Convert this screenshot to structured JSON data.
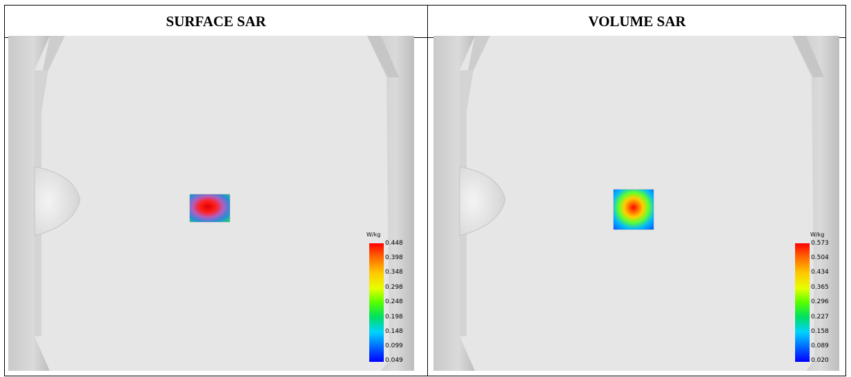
{
  "headers": {
    "left": "SURFACE SAR",
    "right": "VOLUME SAR"
  },
  "legend_unit": "W/kg",
  "left_scale": [
    "0.448",
    "0.398",
    "0.348",
    "0.298",
    "0.248",
    "0.198",
    "0.148",
    "0.099",
    "0.049"
  ],
  "right_scale": [
    "0.573",
    "0.504",
    "0.434",
    "0.365",
    "0.296",
    "0.227",
    "0.158",
    "0.089",
    "0.020"
  ],
  "colors": {
    "scale_top": "#ff0000",
    "scale_bottom": "#0000ff",
    "phantom_bg": "#e3e3e3"
  }
}
